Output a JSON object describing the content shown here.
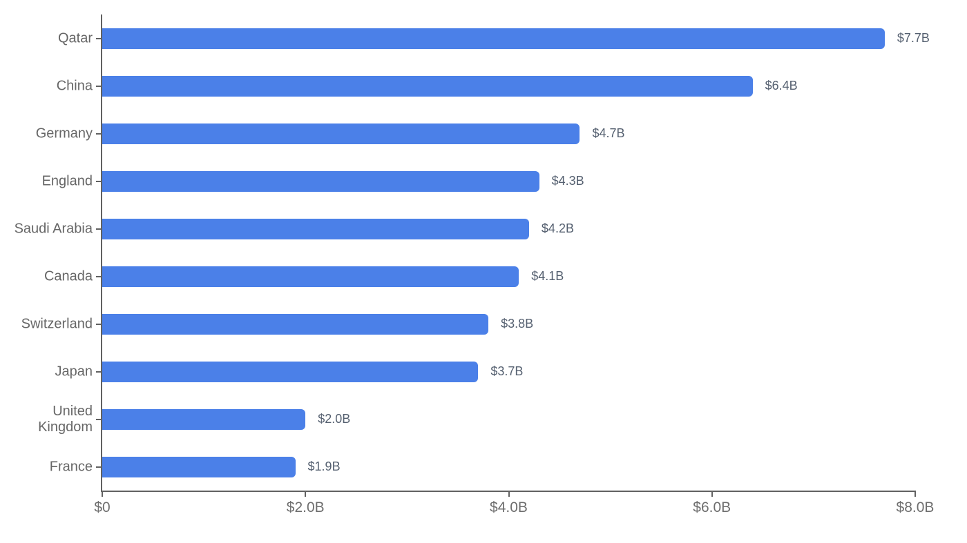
{
  "chart_data": {
    "type": "bar",
    "orientation": "horizontal",
    "title": "",
    "categories": [
      "Qatar",
      "China",
      "Germany",
      "England",
      "Saudi Arabia",
      "Canada",
      "Switzerland",
      "Japan",
      "United\nKingdom",
      "France"
    ],
    "values": [
      7.7,
      6.4,
      4.7,
      4.3,
      4.2,
      4.1,
      3.8,
      3.7,
      2.0,
      1.9
    ],
    "value_labels": [
      "$7.7B",
      "$6.4B",
      "$4.7B",
      "$4.3B",
      "$4.2B",
      "$4.1B",
      "$3.8B",
      "$3.7B",
      "$2.0B",
      "$1.9B"
    ],
    "x_tick_labels": [
      "$0",
      "$2.0B",
      "$4.0B",
      "$6.0B",
      "$8.0B"
    ],
    "x_tick_values": [
      0,
      2,
      4,
      6,
      8
    ],
    "xlim": [
      0,
      8
    ],
    "xlabel": "",
    "ylabel": "",
    "grid": false,
    "legend": false,
    "colors": {
      "bar": "#4b80e8",
      "axis": "#616161",
      "category_label": "#666666",
      "value_label": "#556070",
      "x_tick_label": "#6e6e6e"
    }
  }
}
